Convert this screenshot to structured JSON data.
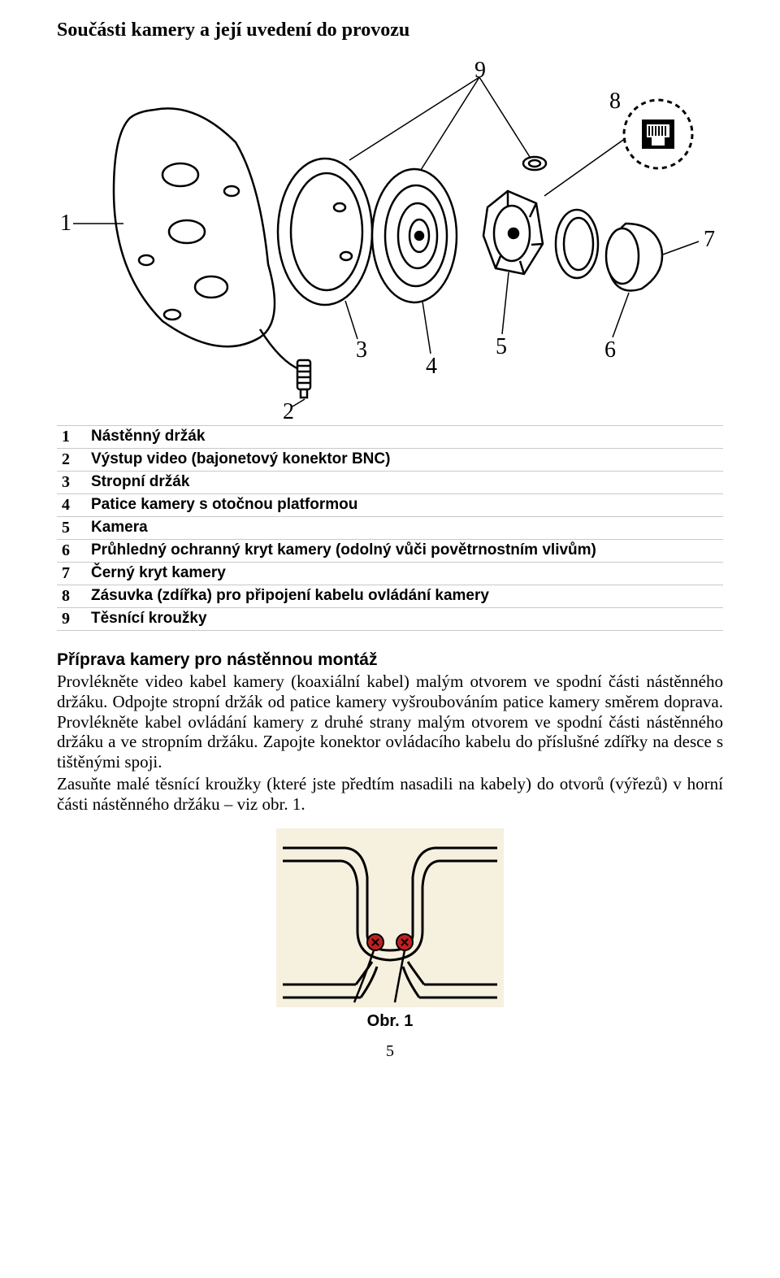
{
  "title": "Součásti kamery a její uvedení do provozu",
  "parts": [
    {
      "num": "1",
      "desc": "Nástěnný držák"
    },
    {
      "num": "2",
      "desc": "Výstup video (bajonetový konektor BNC)"
    },
    {
      "num": "3",
      "desc": "Stropní držák"
    },
    {
      "num": "4",
      "desc": "Patice kamery s otočnou platformou"
    },
    {
      "num": "5",
      "desc": "Kamera"
    },
    {
      "num": "6",
      "desc": "Průhledný ochranný kryt kamery (odolný vůči povětrnostním vlivům)"
    },
    {
      "num": "7",
      "desc": "Černý kryt kamery"
    },
    {
      "num": "8",
      "desc": "Zásuvka (zdířka) pro připojení kabelu ovládání kamery"
    },
    {
      "num": "9",
      "desc": "Těsnící kroužky"
    }
  ],
  "prep": {
    "heading": "Příprava kamery pro nástěnnou montáž",
    "para1": "Provlékněte video kabel kamery (koaxiální kabel) malým otvorem ve spodní části nástěnného držáku. Odpojte stropní držák od patice kamery vyšroubováním patice kamery směrem doprava. Provlékněte kabel ovládání kamery z druhé strany malým otvorem ve spodní části nástěnného držáku a ve stropním držáku. Zapojte konektor ovládacího kabelu do příslušné zdířky na desce s tištěnými spoji.",
    "para2": "Zasuňte malé těsnící kroužky (které jste předtím nasadili na kabely) do otvorů (výřezů) v horní části nástěnného držáku – viz obr. 1."
  },
  "figure": {
    "caption": "Obr. 1"
  },
  "pageNumber": "5",
  "diagram": {
    "labels": [
      "1",
      "2",
      "3",
      "4",
      "5",
      "6",
      "7",
      "8",
      "9"
    ],
    "stroke": "#000000",
    "bg": "#ffffff"
  },
  "obr": {
    "bg": "#f6f0df",
    "stroke": "#000000",
    "screw_fill": "#c02020"
  }
}
